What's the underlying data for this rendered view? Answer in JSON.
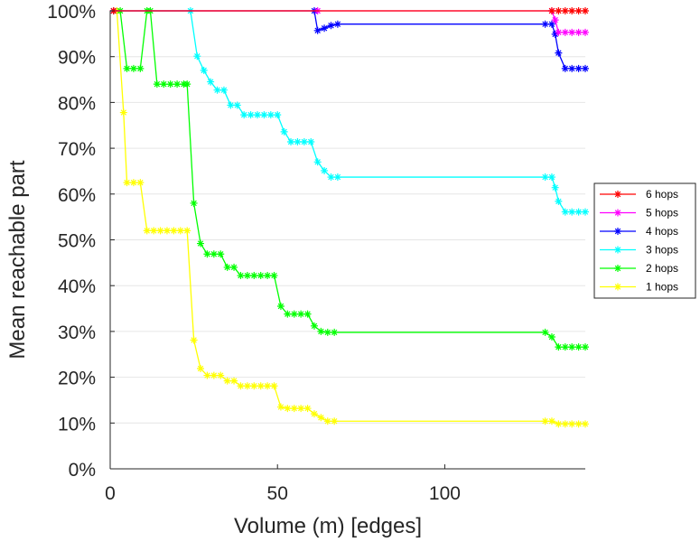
{
  "chart_data": {
    "type": "line",
    "title": "",
    "xlabel": "Volume (m) [edges]",
    "ylabel": "Mean reachable part",
    "xlim": [
      0,
      142
    ],
    "ylim": [
      0,
      100
    ],
    "xticks": [
      0,
      50,
      100
    ],
    "xtick_labels": [
      "0",
      "50",
      "100"
    ],
    "yticks": [
      0,
      10,
      20,
      30,
      40,
      50,
      60,
      70,
      80,
      90,
      100
    ],
    "ytick_labels": [
      "0%",
      "10%",
      "20%",
      "30%",
      "40%",
      "50%",
      "60%",
      "70%",
      "80%",
      "90%",
      "100%"
    ],
    "grid": "horizontal",
    "legend_position": "right",
    "series": [
      {
        "name": "6 hops",
        "color": "#ff0000",
        "x": [
          1,
          132,
          134,
          136,
          138,
          140,
          142
        ],
        "y": [
          100,
          100,
          100,
          100,
          100,
          100,
          100
        ]
      },
      {
        "name": "5 hops",
        "color": "#ff00ff",
        "x": [
          1,
          62,
          132,
          133,
          134,
          136,
          138,
          140,
          142
        ],
        "y": [
          100,
          100,
          100,
          98,
          95.3,
          95.3,
          95.3,
          95.3,
          95.3
        ]
      },
      {
        "name": "4 hops",
        "color": "#0000ff",
        "x": [
          1,
          61,
          62,
          64,
          66,
          68,
          130,
          132,
          133,
          134,
          136,
          138,
          140,
          142
        ],
        "y": [
          100,
          100,
          95.7,
          96.2,
          96.8,
          97.1,
          97.1,
          97.1,
          94.9,
          90.8,
          87.4,
          87.4,
          87.4,
          87.4
        ]
      },
      {
        "name": "3 hops",
        "color": "#00ffff",
        "x": [
          1,
          24,
          26,
          28,
          30,
          32,
          34,
          36,
          38,
          40,
          42,
          44,
          46,
          48,
          50,
          52,
          54,
          56,
          58,
          60,
          62,
          64,
          66,
          68,
          130,
          132,
          133,
          134,
          136,
          138,
          140,
          142
        ],
        "y": [
          100,
          100,
          90.1,
          87.0,
          84.5,
          82.7,
          82.7,
          79.4,
          79.4,
          77.3,
          77.3,
          77.3,
          77.3,
          77.3,
          77.3,
          73.6,
          71.4,
          71.4,
          71.4,
          71.4,
          67.0,
          65.1,
          63.7,
          63.7,
          63.7,
          63.7,
          61.4,
          58.4,
          56.1,
          56.1,
          56.1,
          56.1
        ]
      },
      {
        "name": "2 hops",
        "color": "#00ff00",
        "x": [
          1,
          3,
          5,
          7,
          9,
          11,
          12,
          14,
          16,
          18,
          20,
          22,
          23,
          25,
          27,
          29,
          31,
          33,
          35,
          37,
          39,
          41,
          43,
          45,
          47,
          49,
          51,
          53,
          55,
          57,
          59,
          61,
          63,
          65,
          67,
          130,
          132,
          134,
          136,
          138,
          140,
          142
        ],
        "y": [
          100,
          100,
          87.4,
          87.4,
          87.4,
          100,
          100,
          84.0,
          84.0,
          84.0,
          84.0,
          84.0,
          84.0,
          58.0,
          49.2,
          46.9,
          46.9,
          46.9,
          44.0,
          44.0,
          42.2,
          42.2,
          42.2,
          42.2,
          42.2,
          42.2,
          35.5,
          33.8,
          33.8,
          33.8,
          33.8,
          31.2,
          30.0,
          29.8,
          29.8,
          29.8,
          28.8,
          26.6,
          26.6,
          26.6,
          26.6,
          26.6
        ]
      },
      {
        "name": "1 hops",
        "color": "#ffff00",
        "x": [
          1,
          2,
          4,
          5,
          7,
          9,
          11,
          13,
          15,
          17,
          19,
          21,
          23,
          25,
          27,
          29,
          31,
          33,
          35,
          37,
          39,
          41,
          43,
          45,
          47,
          49,
          51,
          53,
          55,
          57,
          59,
          61,
          63,
          65,
          67,
          130,
          132,
          134,
          136,
          138,
          140,
          142
        ],
        "y": [
          100,
          100,
          77.8,
          62.5,
          62.5,
          62.5,
          52.0,
          52.0,
          52.0,
          52.0,
          52.0,
          52.0,
          52.0,
          28.1,
          21.9,
          20.4,
          20.4,
          20.4,
          19.2,
          19.2,
          18.1,
          18.1,
          18.1,
          18.1,
          18.1,
          18.1,
          13.5,
          13.2,
          13.2,
          13.2,
          13.2,
          12.0,
          11.2,
          10.4,
          10.4,
          10.4,
          10.4,
          9.8,
          9.8,
          9.8,
          9.8,
          9.8
        ]
      }
    ]
  }
}
